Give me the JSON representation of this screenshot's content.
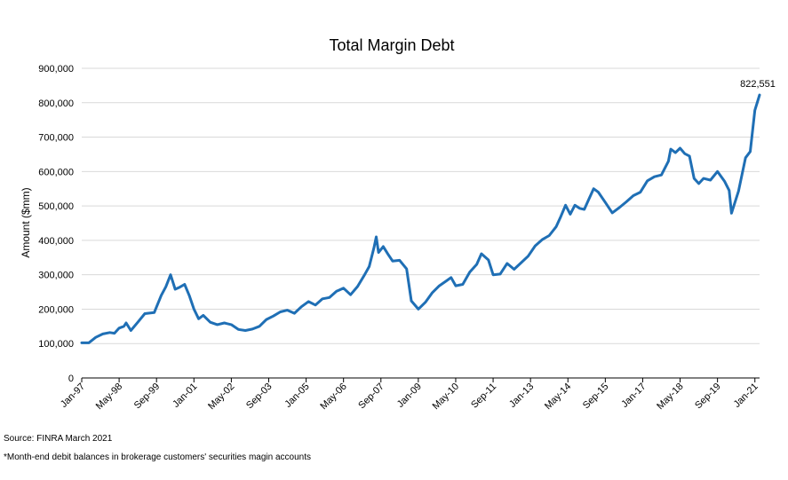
{
  "chart_data": {
    "type": "line",
    "title": "Total Margin Debt",
    "xlabel": "",
    "ylabel": "Amount ($mm)",
    "ylim": [
      0,
      900000
    ],
    "yticks": [
      0,
      100000,
      200000,
      300000,
      400000,
      500000,
      600000,
      700000,
      800000,
      900000
    ],
    "ytick_labels": [
      "0",
      "100,000",
      "200,000",
      "300,000",
      "400,000",
      "500,000",
      "600,000",
      "700,000",
      "800,000",
      "900,000"
    ],
    "xtick_labels": [
      "Jan-97",
      "May-98",
      "Sep-99",
      "Jan-01",
      "May-02",
      "Sep-03",
      "Jan-05",
      "May-06",
      "Sep-07",
      "Jan-09",
      "May-10",
      "Sep-11",
      "Jan-13",
      "May-14",
      "Sep-15",
      "Jan-17",
      "May-18",
      "Sep-19",
      "Jan-21"
    ],
    "grid": true,
    "legend": "none",
    "line_color": "#1f6fb5",
    "annotation": {
      "label": "822,551",
      "x": "2021-03",
      "y": 822551
    },
    "series": [
      {
        "points": [
          [
            "1997-01",
            102000
          ],
          [
            "1997-04",
            102000
          ],
          [
            "1997-07",
            118000
          ],
          [
            "1997-10",
            128000
          ],
          [
            "1998-01",
            132000
          ],
          [
            "1998-03",
            130000
          ],
          [
            "1998-05",
            145000
          ],
          [
            "1998-07",
            150000
          ],
          [
            "1998-08",
            160000
          ],
          [
            "1998-10",
            138000
          ],
          [
            "1999-01",
            162000
          ],
          [
            "1999-04",
            187000
          ],
          [
            "1999-08",
            190000
          ],
          [
            "1999-11",
            240000
          ],
          [
            "2000-01",
            265000
          ],
          [
            "2000-03",
            300000
          ],
          [
            "2000-05",
            258000
          ],
          [
            "2000-07",
            264000
          ],
          [
            "2000-09",
            272000
          ],
          [
            "2000-11",
            240000
          ],
          [
            "2001-01",
            200000
          ],
          [
            "2001-03",
            172000
          ],
          [
            "2001-05",
            182000
          ],
          [
            "2001-08",
            162000
          ],
          [
            "2001-11",
            155000
          ],
          [
            "2002-02",
            160000
          ],
          [
            "2002-05",
            155000
          ],
          [
            "2002-08",
            141000
          ],
          [
            "2002-11",
            138000
          ],
          [
            "2003-02",
            142000
          ],
          [
            "2003-05",
            150000
          ],
          [
            "2003-08",
            170000
          ],
          [
            "2003-11",
            180000
          ],
          [
            "2004-02",
            192000
          ],
          [
            "2004-05",
            197000
          ],
          [
            "2004-08",
            188000
          ],
          [
            "2004-11",
            207000
          ],
          [
            "2005-02",
            222000
          ],
          [
            "2005-05",
            212000
          ],
          [
            "2005-08",
            230000
          ],
          [
            "2005-11",
            234000
          ],
          [
            "2006-02",
            252000
          ],
          [
            "2006-05",
            261000
          ],
          [
            "2006-08",
            242000
          ],
          [
            "2006-11",
            266000
          ],
          [
            "2007-02",
            300000
          ],
          [
            "2007-04",
            324000
          ],
          [
            "2007-06",
            378000
          ],
          [
            "2007-07",
            410000
          ],
          [
            "2007-08",
            365000
          ],
          [
            "2007-10",
            382000
          ],
          [
            "2007-12",
            360000
          ],
          [
            "2008-02",
            340000
          ],
          [
            "2008-05",
            342000
          ],
          [
            "2008-08",
            317000
          ],
          [
            "2008-10",
            224000
          ],
          [
            "2009-01",
            200000
          ],
          [
            "2009-04",
            220000
          ],
          [
            "2009-07",
            248000
          ],
          [
            "2009-10",
            268000
          ],
          [
            "2010-01",
            282000
          ],
          [
            "2010-03",
            292000
          ],
          [
            "2010-05",
            268000
          ],
          [
            "2010-08",
            272000
          ],
          [
            "2010-11",
            308000
          ],
          [
            "2011-02",
            330000
          ],
          [
            "2011-04",
            361000
          ],
          [
            "2011-07",
            343000
          ],
          [
            "2011-09",
            300000
          ],
          [
            "2011-12",
            302000
          ],
          [
            "2012-03",
            333000
          ],
          [
            "2012-06",
            316000
          ],
          [
            "2012-09",
            335000
          ],
          [
            "2012-12",
            354000
          ],
          [
            "2013-03",
            384000
          ],
          [
            "2013-06",
            402000
          ],
          [
            "2013-09",
            414000
          ],
          [
            "2013-12",
            440000
          ],
          [
            "2014-02",
            470000
          ],
          [
            "2014-04",
            502000
          ],
          [
            "2014-06",
            476000
          ],
          [
            "2014-08",
            502000
          ],
          [
            "2014-10",
            493000
          ],
          [
            "2014-12",
            490000
          ],
          [
            "2015-02",
            520000
          ],
          [
            "2015-04",
            550000
          ],
          [
            "2015-06",
            540000
          ],
          [
            "2015-09",
            510000
          ],
          [
            "2015-12",
            480000
          ],
          [
            "2016-03",
            495000
          ],
          [
            "2016-06",
            512000
          ],
          [
            "2016-09",
            530000
          ],
          [
            "2016-12",
            540000
          ],
          [
            "2017-03",
            573000
          ],
          [
            "2017-06",
            585000
          ],
          [
            "2017-09",
            590000
          ],
          [
            "2017-12",
            630000
          ],
          [
            "2018-01",
            665000
          ],
          [
            "2018-03",
            655000
          ],
          [
            "2018-05",
            668000
          ],
          [
            "2018-07",
            652000
          ],
          [
            "2018-09",
            645000
          ],
          [
            "2018-11",
            580000
          ],
          [
            "2019-01",
            565000
          ],
          [
            "2019-03",
            580000
          ],
          [
            "2019-06",
            575000
          ],
          [
            "2019-09",
            600000
          ],
          [
            "2019-12",
            572000
          ],
          [
            "2020-02",
            545000
          ],
          [
            "2020-03",
            479000
          ],
          [
            "2020-06",
            543000
          ],
          [
            "2020-09",
            640000
          ],
          [
            "2020-11",
            658000
          ],
          [
            "2021-01",
            778000
          ],
          [
            "2021-03",
            822551
          ]
        ]
      }
    ]
  },
  "footnotes": {
    "source": "Source: FINRA March 2021",
    "note": "*Month-end debit balances in brokerage customers' securities magin accounts"
  }
}
